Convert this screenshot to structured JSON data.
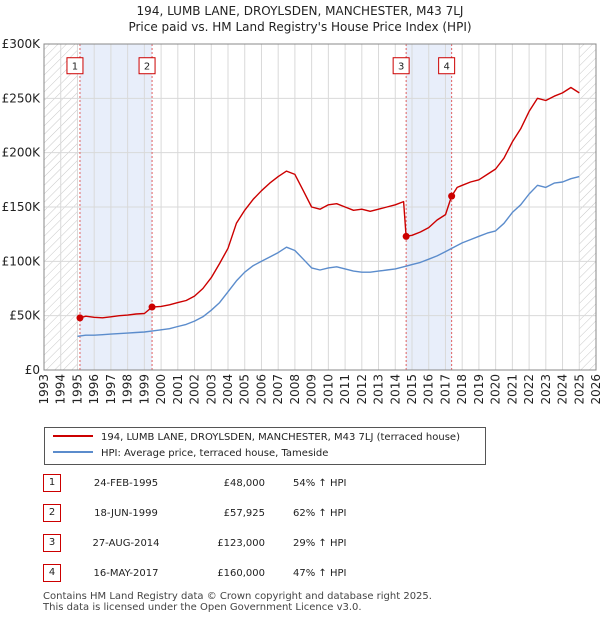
{
  "header": {
    "title": "194, LUMB LANE, DROYLSDEN, MANCHESTER, M43 7LJ",
    "subtitle": "Price paid vs. HM Land Registry's House Price Index (HPI)"
  },
  "colors": {
    "property_line": "#cc0000",
    "hpi_line": "#5b8ccc",
    "shade": "#e8eefa",
    "grid": "#d9d9d9",
    "marker_border": "#cc0000"
  },
  "chart_data": {
    "type": "line",
    "xlim": [
      1993,
      2026
    ],
    "ylim": [
      0,
      300000
    ],
    "x_ticks": [
      "1993",
      "1994",
      "1995",
      "1996",
      "1997",
      "1998",
      "1999",
      "2000",
      "2001",
      "2002",
      "2003",
      "2004",
      "2005",
      "2006",
      "2007",
      "2008",
      "2009",
      "2010",
      "2011",
      "2012",
      "2013",
      "2014",
      "2015",
      "2016",
      "2017",
      "2018",
      "2019",
      "2020",
      "2021",
      "2022",
      "2023",
      "2024",
      "2025",
      "2026"
    ],
    "y_ticks": [
      {
        "value": 0,
        "label": "£0"
      },
      {
        "value": 50000,
        "label": "£50K"
      },
      {
        "value": 100000,
        "label": "£100K"
      },
      {
        "value": 150000,
        "label": "£150K"
      },
      {
        "value": 200000,
        "label": "£200K"
      },
      {
        "value": 250000,
        "label": "£250K"
      },
      {
        "value": 300000,
        "label": "£300K"
      }
    ],
    "hatch_before": 1995.0,
    "hatch_after": 2025.0,
    "shaded_regions": [
      [
        1995.15,
        1999.46
      ],
      [
        2014.65,
        2017.37
      ]
    ],
    "series": [
      {
        "name": "194, LUMB LANE, DROYLSDEN, MANCHESTER, M43 7LJ (terraced house)",
        "points": [
          [
            1995.15,
            48000
          ],
          [
            1995.5,
            49500
          ],
          [
            1996,
            48500
          ],
          [
            1996.5,
            48000
          ],
          [
            1997,
            49000
          ],
          [
            1997.5,
            50000
          ],
          [
            1998,
            50500
          ],
          [
            1998.5,
            51500
          ],
          [
            1999,
            52000
          ],
          [
            1999.46,
            57925
          ],
          [
            2000,
            58500
          ],
          [
            2000.5,
            60000
          ],
          [
            2001,
            62000
          ],
          [
            2001.5,
            64000
          ],
          [
            2002,
            68000
          ],
          [
            2002.5,
            75000
          ],
          [
            2003,
            85000
          ],
          [
            2003.5,
            98000
          ],
          [
            2004,
            112000
          ],
          [
            2004.5,
            135000
          ],
          [
            2005,
            147000
          ],
          [
            2005.5,
            157000
          ],
          [
            2006,
            165000
          ],
          [
            2006.5,
            172000
          ],
          [
            2007,
            178000
          ],
          [
            2007.5,
            183000
          ],
          [
            2008,
            180000
          ],
          [
            2008.5,
            165000
          ],
          [
            2009,
            150000
          ],
          [
            2009.5,
            148000
          ],
          [
            2010,
            152000
          ],
          [
            2010.5,
            153000
          ],
          [
            2011,
            150000
          ],
          [
            2011.5,
            147000
          ],
          [
            2012,
            148000
          ],
          [
            2012.5,
            146000
          ],
          [
            2013,
            148000
          ],
          [
            2013.5,
            150000
          ],
          [
            2014,
            152000
          ],
          [
            2014.5,
            155000
          ],
          [
            2014.65,
            123000
          ],
          [
            2015,
            124000
          ],
          [
            2015.5,
            127000
          ],
          [
            2016,
            131000
          ],
          [
            2016.5,
            138000
          ],
          [
            2017,
            143000
          ],
          [
            2017.37,
            160000
          ],
          [
            2017.7,
            168000
          ],
          [
            2018,
            170000
          ],
          [
            2018.5,
            173000
          ],
          [
            2019,
            175000
          ],
          [
            2019.5,
            180000
          ],
          [
            2020,
            185000
          ],
          [
            2020.5,
            195000
          ],
          [
            2021,
            210000
          ],
          [
            2021.5,
            222000
          ],
          [
            2022,
            238000
          ],
          [
            2022.5,
            250000
          ],
          [
            2023,
            248000
          ],
          [
            2023.5,
            252000
          ],
          [
            2024,
            255000
          ],
          [
            2024.5,
            260000
          ],
          [
            2025,
            255000
          ]
        ]
      },
      {
        "name": "HPI: Average price, terraced house, Tameside",
        "points": [
          [
            1995,
            31000
          ],
          [
            1995.5,
            32000
          ],
          [
            1996,
            32000
          ],
          [
            1996.5,
            32500
          ],
          [
            1997,
            33000
          ],
          [
            1997.5,
            33500
          ],
          [
            1998,
            34000
          ],
          [
            1998.5,
            34500
          ],
          [
            1999,
            35000
          ],
          [
            1999.5,
            36000
          ],
          [
            2000,
            37000
          ],
          [
            2000.5,
            38000
          ],
          [
            2001,
            40000
          ],
          [
            2001.5,
            42000
          ],
          [
            2002,
            45000
          ],
          [
            2002.5,
            49000
          ],
          [
            2003,
            55000
          ],
          [
            2003.5,
            62000
          ],
          [
            2004,
            72000
          ],
          [
            2004.5,
            82000
          ],
          [
            2005,
            90000
          ],
          [
            2005.5,
            96000
          ],
          [
            2006,
            100000
          ],
          [
            2006.5,
            104000
          ],
          [
            2007,
            108000
          ],
          [
            2007.5,
            113000
          ],
          [
            2008,
            110000
          ],
          [
            2008.5,
            102000
          ],
          [
            2009,
            94000
          ],
          [
            2009.5,
            92000
          ],
          [
            2010,
            94000
          ],
          [
            2010.5,
            95000
          ],
          [
            2011,
            93000
          ],
          [
            2011.5,
            91000
          ],
          [
            2012,
            90000
          ],
          [
            2012.5,
            90000
          ],
          [
            2013,
            91000
          ],
          [
            2013.5,
            92000
          ],
          [
            2014,
            93000
          ],
          [
            2014.5,
            95000
          ],
          [
            2015,
            97000
          ],
          [
            2015.5,
            99000
          ],
          [
            2016,
            102000
          ],
          [
            2016.5,
            105000
          ],
          [
            2017,
            109000
          ],
          [
            2017.5,
            113000
          ],
          [
            2018,
            117000
          ],
          [
            2018.5,
            120000
          ],
          [
            2019,
            123000
          ],
          [
            2019.5,
            126000
          ],
          [
            2020,
            128000
          ],
          [
            2020.5,
            135000
          ],
          [
            2021,
            145000
          ],
          [
            2021.5,
            152000
          ],
          [
            2022,
            162000
          ],
          [
            2022.5,
            170000
          ],
          [
            2023,
            168000
          ],
          [
            2023.5,
            172000
          ],
          [
            2024,
            173000
          ],
          [
            2024.5,
            176000
          ],
          [
            2025,
            178000
          ]
        ]
      }
    ],
    "sales": [
      {
        "id": "1",
        "x": 1995.15,
        "value": 48000
      },
      {
        "id": "2",
        "x": 1999.46,
        "value": 57925
      },
      {
        "id": "3",
        "x": 2014.65,
        "value": 123000
      },
      {
        "id": "4",
        "x": 2017.37,
        "value": 160000
      }
    ],
    "marker_label_value": 280000
  },
  "legend": {
    "property_label": "194, LUMB LANE, DROYLSDEN, MANCHESTER, M43 7LJ (terraced house)",
    "hpi_label": "HPI: Average price, terraced house, Tameside"
  },
  "sales_table": [
    {
      "num": "1",
      "date": "24-FEB-1995",
      "price": "£48,000",
      "hpi": "54% ↑ HPI"
    },
    {
      "num": "2",
      "date": "18-JUN-1999",
      "price": "£57,925",
      "hpi": "62% ↑ HPI"
    },
    {
      "num": "3",
      "date": "27-AUG-2014",
      "price": "£123,000",
      "hpi": "29% ↑ HPI"
    },
    {
      "num": "4",
      "date": "16-MAY-2017",
      "price": "£160,000",
      "hpi": "47% ↑ HPI"
    }
  ],
  "footer": {
    "line1": "Contains HM Land Registry data © Crown copyright and database right 2025.",
    "line2": "This data is licensed under the Open Government Licence v3.0."
  }
}
